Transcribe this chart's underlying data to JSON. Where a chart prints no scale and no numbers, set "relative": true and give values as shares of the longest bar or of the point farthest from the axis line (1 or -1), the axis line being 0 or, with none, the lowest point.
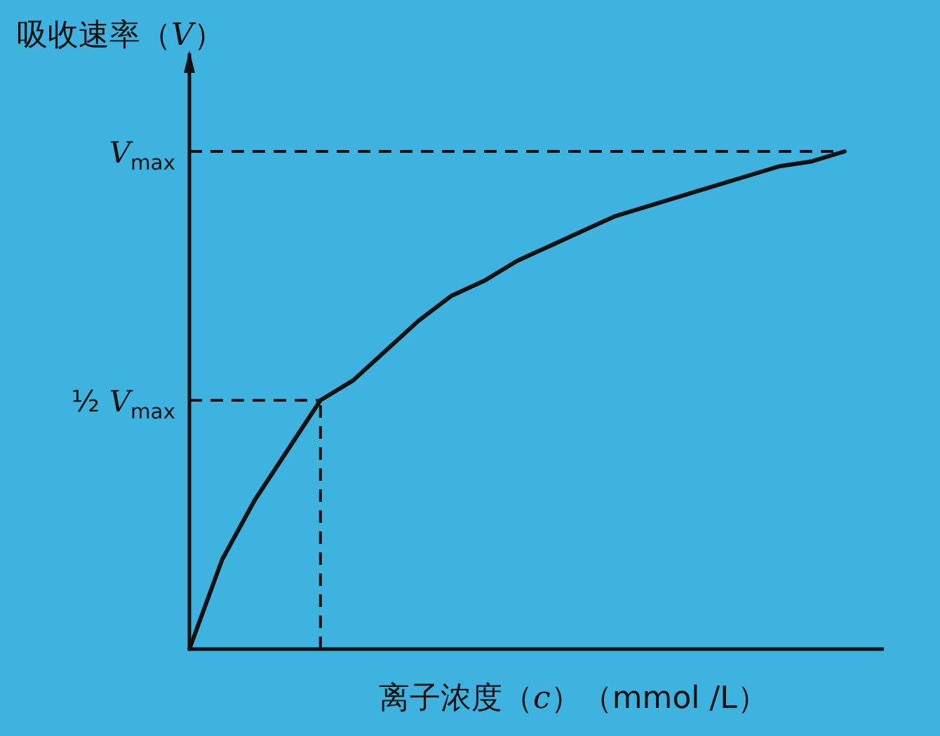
{
  "chart_data": {
    "type": "line",
    "xlabel": "离子浓度（*c*）（mmol /L）",
    "ylabel": "吸收速率（*V*）",
    "relative": true,
    "line_style": "solid",
    "categories": [
      null,
      null,
      null,
      null,
      null,
      null,
      null,
      null,
      null,
      null,
      null,
      null,
      null,
      null,
      null,
      null,
      null,
      null,
      null,
      null,
      null
    ],
    "series": [
      {
        "color": "#111111",
        "values": [
          0,
          0.18,
          0.3,
          0.4,
          0.5,
          0.54,
          0.6,
          0.66,
          0.71,
          0.74,
          0.78,
          0.81,
          0.84,
          0.87,
          0.89,
          0.91,
          0.93,
          0.95,
          0.97,
          0.98,
          1.0
        ]
      }
    ],
    "ref_lines": [
      {
        "axis": "y",
        "value": 1,
        "label": "*V*$_{max}$",
        "color": "#111111",
        "line_style": "dashed"
      },
      {
        "axis": "y",
        "value": 0.5,
        "label": "½ *V*$_{max}$",
        "color": "#111111",
        "line_style": "dashed"
      }
    ]
  }
}
